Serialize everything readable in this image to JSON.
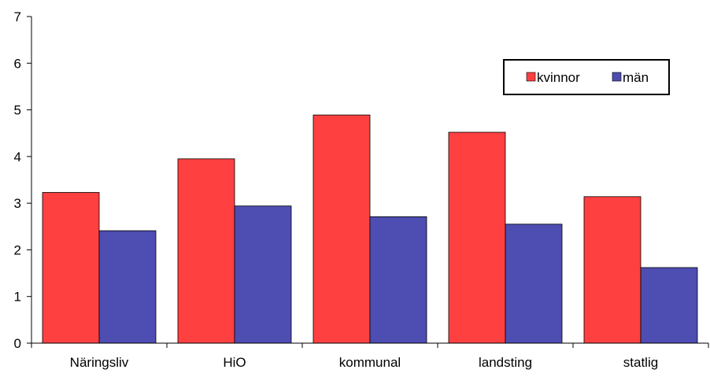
{
  "chart_data": {
    "type": "bar",
    "title": "",
    "xlabel": "",
    "ylabel": "",
    "categories": [
      "Näringsliv",
      "HiO",
      "kommunal",
      "landsting",
      "statlig"
    ],
    "series": [
      {
        "name": "kvinnor",
        "color": "#FF4040",
        "values": [
          3.23,
          3.95,
          4.89,
          4.52,
          3.14
        ]
      },
      {
        "name": "män",
        "color": "#4E4DB2",
        "values": [
          2.41,
          2.94,
          2.71,
          2.55,
          1.62
        ]
      }
    ],
    "ylim": [
      0,
      7
    ],
    "yticks": [
      0,
      1,
      2,
      3,
      4,
      5,
      6,
      7
    ],
    "grid": false,
    "legend": "top-right"
  }
}
